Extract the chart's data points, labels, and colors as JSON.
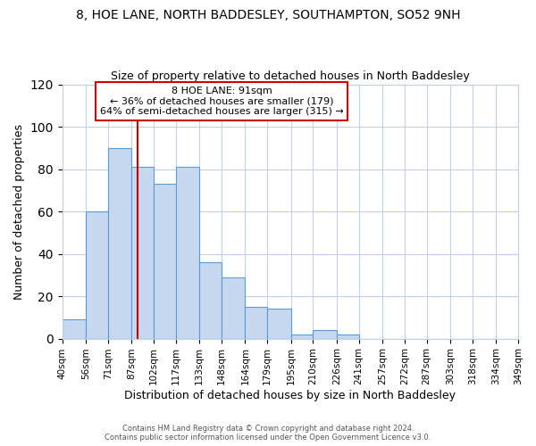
{
  "title": "8, HOE LANE, NORTH BADDESLEY, SOUTHAMPTON, SO52 9NH",
  "subtitle": "Size of property relative to detached houses in North Baddesley",
  "xlabel": "Distribution of detached houses by size in North Baddesley",
  "ylabel": "Number of detached properties",
  "bar_color": "#c5d8f0",
  "bar_edge_color": "#5b9bd5",
  "bin_edges": [
    40,
    56,
    71,
    87,
    102,
    117,
    133,
    148,
    164,
    179,
    195,
    210,
    226,
    241,
    257,
    272,
    287,
    303,
    318,
    334,
    349
  ],
  "bar_heights": [
    9,
    60,
    90,
    81,
    73,
    81,
    36,
    29,
    15,
    14,
    2,
    4,
    2,
    0,
    0,
    0,
    0,
    0,
    0,
    0
  ],
  "tick_labels": [
    "40sqm",
    "56sqm",
    "71sqm",
    "87sqm",
    "102sqm",
    "117sqm",
    "133sqm",
    "148sqm",
    "164sqm",
    "179sqm",
    "195sqm",
    "210sqm",
    "226sqm",
    "241sqm",
    "257sqm",
    "272sqm",
    "287sqm",
    "303sqm",
    "318sqm",
    "334sqm",
    "349sqm"
  ],
  "ylim": [
    0,
    120
  ],
  "yticks": [
    0,
    20,
    40,
    60,
    80,
    100,
    120
  ],
  "vline_x": 91,
  "vline_color": "#cc0000",
  "annotation_title": "8 HOE LANE: 91sqm",
  "annotation_line1": "← 36% of detached houses are smaller (179)",
  "annotation_line2": "64% of semi-detached houses are larger (315) →",
  "annotation_box_color": "#ffffff",
  "annotation_box_edge": "#cc0000",
  "footer1": "Contains HM Land Registry data © Crown copyright and database right 2024.",
  "footer2": "Contains public sector information licensed under the Open Government Licence v3.0.",
  "background_color": "#ffffff",
  "grid_color": "#c0d0e8",
  "title_fontsize": 10,
  "subtitle_fontsize": 9,
  "title_fontweight": "normal"
}
